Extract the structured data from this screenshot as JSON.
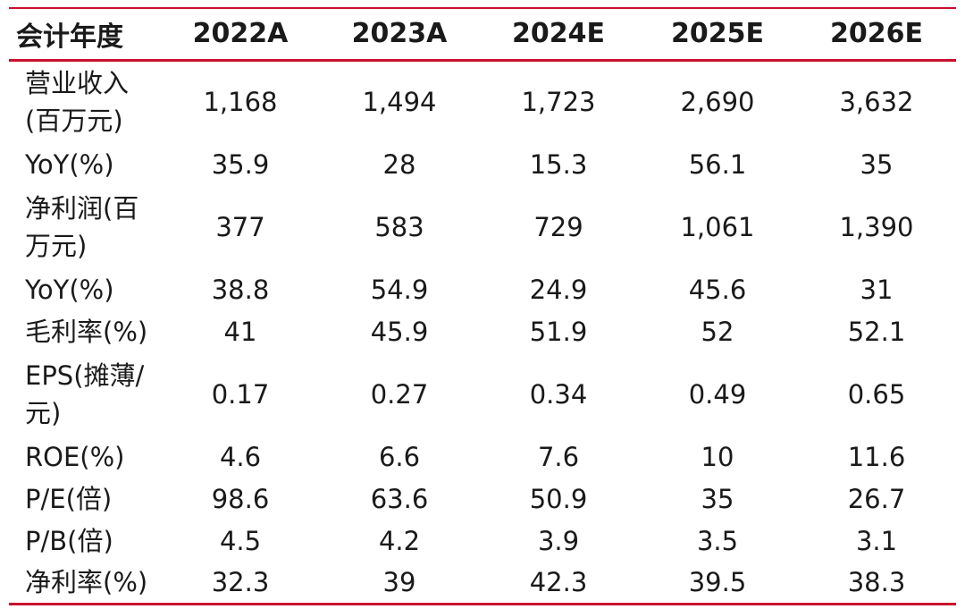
{
  "header": {
    "label": "会计年度",
    "years": [
      "2022A",
      "2023A",
      "2024E",
      "2025E",
      "2026E"
    ]
  },
  "rows": [
    {
      "label_lines": [
        "营业收入",
        "(百万元)"
      ],
      "values": [
        "1,168",
        "1,494",
        "1,723",
        "2,690",
        "3,632"
      ]
    },
    {
      "label_lines": [
        "YoY(%)"
      ],
      "values": [
        "35.9",
        "28",
        "15.3",
        "56.1",
        "35"
      ]
    },
    {
      "label_lines": [
        "净利润(百",
        "万元)"
      ],
      "values": [
        "377",
        "583",
        "729",
        "1,061",
        "1,390"
      ]
    },
    {
      "label_lines": [
        "YoY(%)"
      ],
      "values": [
        "38.8",
        "54.9",
        "24.9",
        "45.6",
        "31"
      ]
    },
    {
      "label_lines": [
        "毛利率(%)"
      ],
      "values": [
        "41",
        "45.9",
        "51.9",
        "52",
        "52.1"
      ]
    },
    {
      "label_lines": [
        "EPS(摊薄/",
        "元)"
      ],
      "values": [
        "0.17",
        "0.27",
        "0.34",
        "0.49",
        "0.65"
      ]
    },
    {
      "label_lines": [
        "ROE(%)"
      ],
      "values": [
        "4.6",
        "6.6",
        "7.6",
        "10",
        "11.6"
      ]
    },
    {
      "label_lines": [
        "P/E(倍)"
      ],
      "values": [
        "98.6",
        "63.6",
        "50.9",
        "35",
        "26.7"
      ]
    },
    {
      "label_lines": [
        "P/B(倍)"
      ],
      "values": [
        "4.5",
        "4.2",
        "3.9",
        "3.5",
        "3.1"
      ]
    },
    {
      "label_lines": [
        "净利率(%)"
      ],
      "values": [
        "32.3",
        "39",
        "42.3",
        "39.5",
        "38.3"
      ]
    }
  ],
  "colors": {
    "rule": "#c8102e",
    "text": "#1a1a1a"
  }
}
